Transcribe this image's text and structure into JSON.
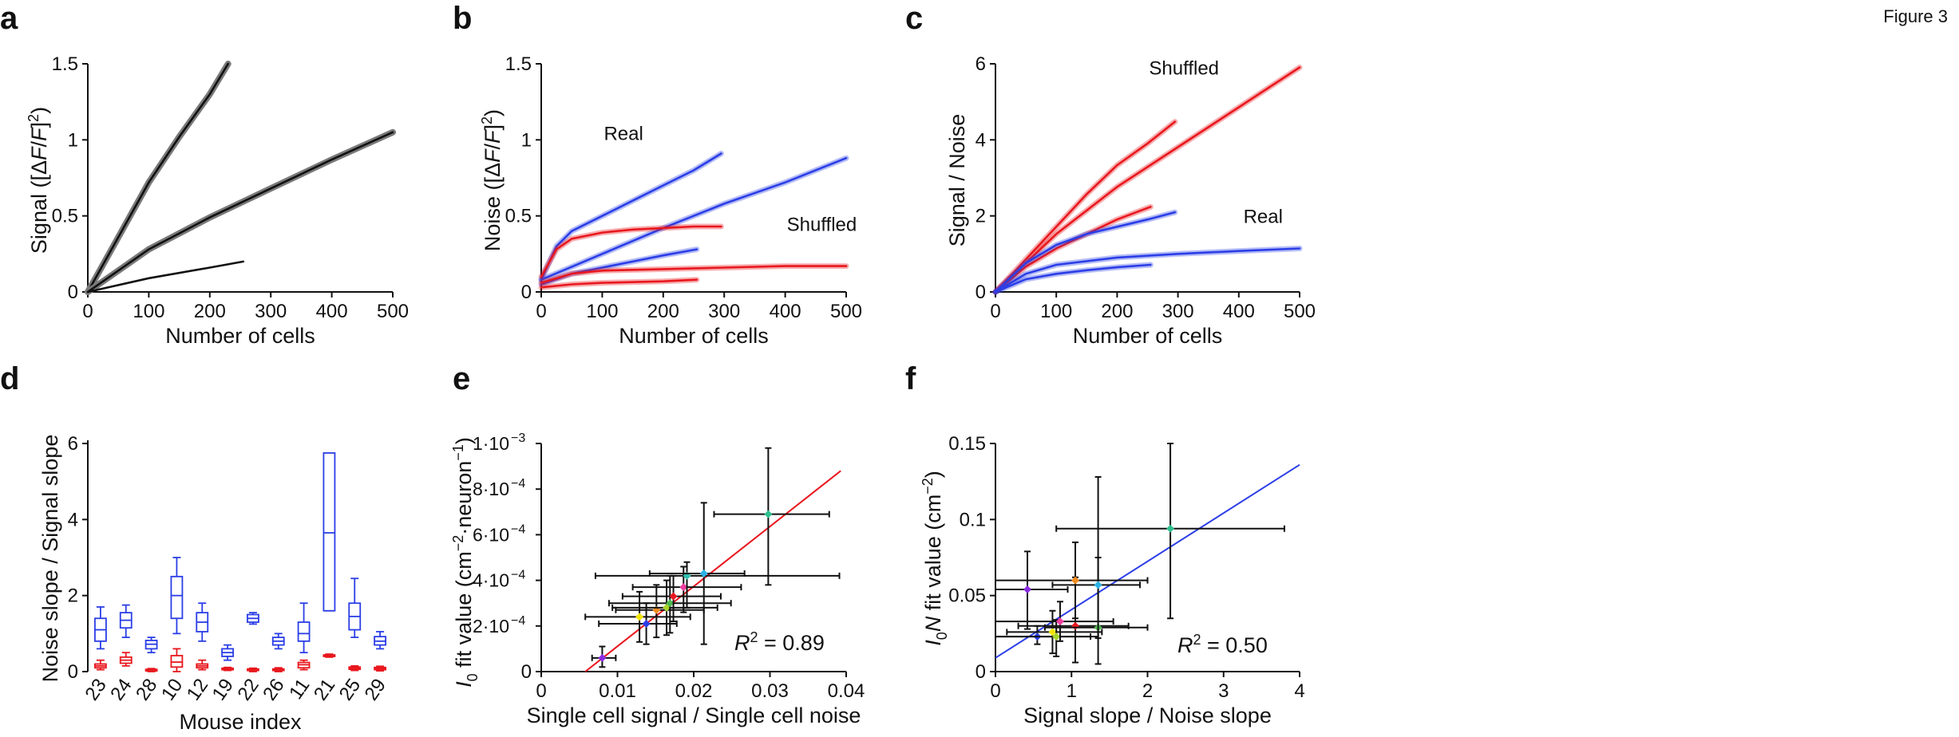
{
  "figure_label": "Figure 3",
  "colors": {
    "real": "#2b3ee6",
    "shuffled": "#e8181e",
    "black": "#111111",
    "gray": "#7a7a7a"
  },
  "chart_data": [
    {
      "panel": "a",
      "type": "line",
      "xlabel": "Number of cells",
      "ylabel_html": "Signal ([ΔF/F]²)",
      "ylabel_pre": "Signal ([",
      "ylabel_delta": "Δ",
      "ylabel_F1": "F",
      "ylabel_slash": "/",
      "ylabel_F2": "F",
      "ylabel_post": "]",
      "ylabel_sup": "2",
      "ylabel_close": ")",
      "xlim": [
        0,
        500
      ],
      "ylim": [
        0,
        1.5
      ],
      "xticks": [
        "0",
        "100",
        "200",
        "300",
        "400",
        "500"
      ],
      "yticks": [
        "0",
        "0.5",
        "1",
        "1.5"
      ],
      "series": [
        {
          "x": [
            0,
            50,
            100,
            150,
            200,
            230
          ],
          "y": [
            0,
            0.36,
            0.72,
            1.02,
            1.3,
            1.5
          ]
        },
        {
          "x": [
            0,
            100,
            200,
            300,
            400,
            500
          ],
          "y": [
            0,
            0.28,
            0.49,
            0.68,
            0.87,
            1.05
          ]
        },
        {
          "x": [
            0,
            100,
            200,
            255
          ],
          "y": [
            0,
            0.09,
            0.16,
            0.2
          ]
        }
      ]
    },
    {
      "panel": "b",
      "type": "line",
      "xlabel": "Number of cells",
      "ylabel_pre": "Noise ([",
      "ylabel_delta": "Δ",
      "ylabel_F1": "F",
      "ylabel_slash": "/",
      "ylabel_F2": "F",
      "ylabel_post": "]",
      "ylabel_sup": "2",
      "ylabel_close": ")",
      "xlim": [
        0,
        500
      ],
      "ylim": [
        0,
        1.5
      ],
      "xticks": [
        "0",
        "100",
        "200",
        "300",
        "400",
        "500"
      ],
      "yticks": [
        "0",
        "0.5",
        "1",
        "1.5"
      ],
      "annotations": [
        {
          "text": "Real",
          "x": 135,
          "y": 1.0
        },
        {
          "text": "Shuffled",
          "x": 460,
          "y": 0.4
        }
      ],
      "series": [
        {
          "group": "real",
          "x": [
            0,
            25,
            50,
            100,
            150,
            200,
            250,
            295
          ],
          "y": [
            0.08,
            0.3,
            0.4,
            0.5,
            0.6,
            0.7,
            0.8,
            0.91
          ]
        },
        {
          "group": "real",
          "x": [
            0,
            100,
            200,
            300,
            400,
            500
          ],
          "y": [
            0.08,
            0.25,
            0.42,
            0.58,
            0.72,
            0.88
          ]
        },
        {
          "group": "real",
          "x": [
            0,
            50,
            100,
            150,
            200,
            255
          ],
          "y": [
            0.05,
            0.12,
            0.16,
            0.2,
            0.24,
            0.28
          ]
        },
        {
          "group": "shuffled",
          "x": [
            0,
            25,
            50,
            100,
            150,
            200,
            250,
            295
          ],
          "y": [
            0.1,
            0.28,
            0.35,
            0.39,
            0.41,
            0.42,
            0.43,
            0.43
          ]
        },
        {
          "group": "shuffled",
          "x": [
            0,
            50,
            100,
            200,
            300,
            400,
            500
          ],
          "y": [
            0.06,
            0.12,
            0.14,
            0.15,
            0.16,
            0.17,
            0.17
          ]
        },
        {
          "group": "shuffled",
          "x": [
            0,
            50,
            100,
            200,
            255
          ],
          "y": [
            0.03,
            0.05,
            0.06,
            0.07,
            0.08
          ]
        }
      ]
    },
    {
      "panel": "c",
      "type": "line",
      "xlabel": "Number of cells",
      "ylabel": "Signal / Noise",
      "xlim": [
        0,
        500
      ],
      "ylim": [
        0,
        6.3
      ],
      "xticks": [
        "0",
        "100",
        "200",
        "300",
        "400",
        "500"
      ],
      "yticks": [
        "0",
        "2",
        "4",
        "6"
      ],
      "annotations": [
        {
          "text": "Shuffled",
          "x": 310,
          "y": 6.0
        },
        {
          "text": "Real",
          "x": 440,
          "y": 1.9
        }
      ],
      "series": [
        {
          "group": "shuffled",
          "x": [
            0,
            100,
            200,
            300,
            400,
            500
          ],
          "y": [
            0,
            1.6,
            2.9,
            4.0,
            5.1,
            6.2
          ]
        },
        {
          "group": "shuffled",
          "x": [
            0,
            50,
            100,
            150,
            200,
            250,
            295
          ],
          "y": [
            0,
            0.9,
            1.8,
            2.7,
            3.5,
            4.1,
            4.7
          ]
        },
        {
          "group": "shuffled",
          "x": [
            0,
            50,
            100,
            150,
            200,
            255
          ],
          "y": [
            0,
            0.7,
            1.2,
            1.6,
            2.0,
            2.35
          ]
        },
        {
          "group": "real",
          "x": [
            0,
            50,
            100,
            150,
            200,
            250,
            295
          ],
          "y": [
            0,
            0.8,
            1.3,
            1.6,
            1.8,
            2.0,
            2.2
          ]
        },
        {
          "group": "real",
          "x": [
            0,
            50,
            100,
            200,
            300,
            400,
            500
          ],
          "y": [
            0,
            0.5,
            0.75,
            0.95,
            1.05,
            1.13,
            1.2
          ]
        },
        {
          "group": "real",
          "x": [
            0,
            50,
            100,
            150,
            200,
            255
          ],
          "y": [
            0,
            0.35,
            0.5,
            0.6,
            0.68,
            0.75
          ]
        }
      ]
    },
    {
      "panel": "d",
      "type": "box",
      "xlabel": "Mouse index",
      "ylabel": "Noise slope / Signal slope",
      "ylim": [
        0,
        6
      ],
      "yticks": [
        "0",
        "2",
        "4",
        "6"
      ],
      "categories": [
        "23",
        "24",
        "28",
        "10",
        "12",
        "19",
        "22",
        "26",
        "11",
        "21",
        "25",
        "29"
      ],
      "real": [
        [
          0.6,
          0.8,
          1.1,
          1.4,
          1.7
        ],
        [
          0.9,
          1.15,
          1.35,
          1.55,
          1.75
        ],
        [
          0.5,
          0.6,
          0.72,
          0.82,
          0.9
        ],
        [
          1.0,
          1.4,
          2.0,
          2.5,
          3.0
        ],
        [
          0.8,
          1.05,
          1.3,
          1.55,
          1.8
        ],
        [
          0.3,
          0.4,
          0.5,
          0.6,
          0.7
        ],
        [
          1.25,
          1.3,
          1.4,
          1.5,
          1.55
        ],
        [
          0.6,
          0.7,
          0.8,
          0.9,
          1.0
        ],
        [
          0.5,
          0.8,
          1.0,
          1.3,
          1.8
        ],
        [
          1.6,
          1.6,
          3.65,
          5.75,
          5.75
        ],
        [
          0.9,
          1.1,
          1.45,
          1.8,
          2.45
        ],
        [
          0.6,
          0.7,
          0.8,
          0.92,
          1.05
        ]
      ],
      "shuffled": [
        [
          0.05,
          0.1,
          0.15,
          0.2,
          0.3
        ],
        [
          0.15,
          0.22,
          0.3,
          0.38,
          0.5
        ],
        [
          0.0,
          0.02,
          0.04,
          0.06,
          0.08
        ],
        [
          0.0,
          0.12,
          0.25,
          0.42,
          0.6
        ],
        [
          0.05,
          0.1,
          0.15,
          0.2,
          0.3
        ],
        [
          0.03,
          0.05,
          0.07,
          0.09,
          0.11
        ],
        [
          0.0,
          0.03,
          0.05,
          0.07,
          0.09
        ],
        [
          0.0,
          0.03,
          0.05,
          0.07,
          0.1
        ],
        [
          0.05,
          0.1,
          0.18,
          0.24,
          0.3
        ],
        [
          0.38,
          0.4,
          0.42,
          0.44,
          0.46
        ],
        [
          0.03,
          0.06,
          0.09,
          0.12,
          0.15
        ],
        [
          0.02,
          0.05,
          0.08,
          0.11,
          0.14
        ]
      ]
    },
    {
      "panel": "e",
      "type": "scatter",
      "xlabel": "Single cell signal / Single cell noise",
      "ylabel_I": "I",
      "ylabel_sub": "0",
      "ylabel_a": " fit value (cm",
      "ylabel_sup1": "−2",
      "ylabel_b": "·neuron",
      "ylabel_sup2": "−1",
      "ylabel_c": ")",
      "xlim": [
        0,
        0.045
      ],
      "ylim": [
        0,
        0.001
      ],
      "xticks": [
        "0",
        "0.01",
        "0.02",
        "0.03",
        "0.04"
      ],
      "yticks": [
        "0",
        "2·10",
        "4·10",
        "6·10",
        "8·10",
        "1·10"
      ],
      "ytick_exps": [
        "",
        "−4",
        "−4",
        "−4",
        "−4",
        "−3"
      ],
      "r2_R": "R",
      "r2_sup": "2",
      "r2_rest": " = 0.89",
      "fit_line": {
        "x": [
          0.0065,
          0.0442
        ],
        "y": [
          0,
          0.00088
        ]
      },
      "points": [
        {
          "x": 0.009,
          "y": 6e-05,
          "xerr": [
            0.0075,
            0.011
          ],
          "yerr": [
            2e-05,
            0.00011
          ],
          "color": "#8a2be2"
        },
        {
          "x": 0.0155,
          "y": 0.00021,
          "xerr": [
            0.0085,
            0.02
          ],
          "yerr": [
            0.00012,
            0.0003
          ],
          "color": "#2b3ee6"
        },
        {
          "x": 0.0145,
          "y": 0.00024,
          "xerr": [
            0.0065,
            0.022
          ],
          "yerr": [
            0.00013,
            0.00035
          ],
          "color": "#f2e600"
        },
        {
          "x": 0.017,
          "y": 0.00027,
          "xerr": [
            0.011,
            0.024
          ],
          "yerr": [
            0.00015,
            0.00038
          ],
          "color": "#f08c1e"
        },
        {
          "x": 0.0185,
          "y": 0.00028,
          "xerr": [
            0.0105,
            0.026
          ],
          "yerr": [
            0.00016,
            0.0004
          ],
          "color": "#a8d42a"
        },
        {
          "x": 0.019,
          "y": 0.0003,
          "xerr": [
            0.01,
            0.028
          ],
          "yerr": [
            0.00017,
            0.00042
          ],
          "color": "#4fb84f"
        },
        {
          "x": 0.0195,
          "y": 0.00033,
          "xerr": [
            0.012,
            0.0265
          ],
          "yerr": [
            0.00022,
            0.00042
          ],
          "color": "#e8181e"
        },
        {
          "x": 0.021,
          "y": 0.00037,
          "xerr": [
            0.0135,
            0.0295
          ],
          "yerr": [
            0.00026,
            0.00046
          ],
          "color": "#ee3ea0"
        },
        {
          "x": 0.0215,
          "y": 0.00042,
          "xerr": [
            0.008,
            0.044
          ],
          "yerr": [
            0.00028,
            0.00048
          ],
          "color": "#30c0b0"
        },
        {
          "x": 0.024,
          "y": 0.00043,
          "xerr": [
            0.016,
            0.03
          ],
          "yerr": [
            0.00012,
            0.00074
          ],
          "color": "#2bb3e6"
        },
        {
          "x": 0.0335,
          "y": 0.00069,
          "xerr": [
            0.0255,
            0.0425
          ],
          "yerr": [
            0.00038,
            0.00098
          ],
          "color": "#30c090"
        }
      ]
    },
    {
      "panel": "f",
      "type": "scatter",
      "xlabel": "Signal slope / Noise slope",
      "ylabel_I": "I",
      "ylabel_sub": "0",
      "ylabel_N": "N",
      "ylabel_a": " fit value (cm",
      "ylabel_sup": "−2",
      "ylabel_c": ")",
      "xlim": [
        0,
        4
      ],
      "ylim": [
        0,
        0.15
      ],
      "xticks": [
        "0",
        "1",
        "2",
        "3",
        "4"
      ],
      "yticks": [
        "0",
        "0.05",
        "0.1",
        "0.15"
      ],
      "r2_R": "R",
      "r2_sup": "2",
      "r2_rest": " = 0.50",
      "fit_line": {
        "x": [
          0,
          4
        ],
        "y": [
          0.009,
          0.136
        ]
      },
      "points": [
        {
          "x": 0.42,
          "y": 0.054,
          "xerr": [
            0.0,
            0.95
          ],
          "yerr": [
            0.028,
            0.079
          ],
          "color": "#8a2be2"
        },
        {
          "x": 0.55,
          "y": 0.023,
          "xerr": [
            0.0,
            1.25
          ],
          "yerr": [
            0.018,
            0.03
          ],
          "color": "#2b3ee6"
        },
        {
          "x": 0.75,
          "y": 0.026,
          "xerr": [
            0.15,
            1.4
          ],
          "yerr": [
            0.012,
            0.04
          ],
          "color": "#f2e600"
        },
        {
          "x": 0.8,
          "y": 0.023,
          "xerr": [
            0.0,
            1.35
          ],
          "yerr": [
            0.01,
            0.034
          ],
          "color": "#a8d42a"
        },
        {
          "x": 0.85,
          "y": 0.033,
          "xerr": [
            0.0,
            1.55
          ],
          "yerr": [
            0.02,
            0.046
          ],
          "color": "#ee3ea0"
        },
        {
          "x": 1.05,
          "y": 0.03,
          "xerr": [
            0.3,
            1.75
          ],
          "yerr": [
            0.006,
            0.062
          ],
          "color": "#e8181e"
        },
        {
          "x": 1.05,
          "y": 0.06,
          "xerr": [
            0.0,
            2.0
          ],
          "yerr": [
            0.035,
            0.085
          ],
          "color": "#f08c1e"
        },
        {
          "x": 1.35,
          "y": 0.029,
          "xerr": [
            0.65,
            2.0
          ],
          "yerr": [
            0.005,
            0.075
          ],
          "color": "#4fb84f"
        },
        {
          "x": 1.35,
          "y": 0.057,
          "xerr": [
            0.75,
            1.9
          ],
          "yerr": [
            0.022,
            0.128
          ],
          "color": "#2bb3e6"
        },
        {
          "x": 2.3,
          "y": 0.094,
          "xerr": [
            0.8,
            3.8
          ],
          "yerr": [
            0.035,
            0.15
          ],
          "color": "#30c090"
        }
      ]
    }
  ]
}
